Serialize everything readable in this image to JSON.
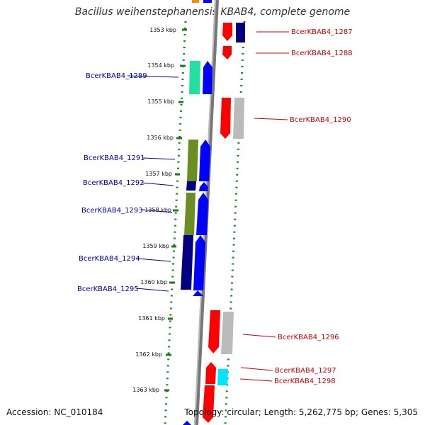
{
  "title": "Bacillus weihenstephanensis KBAB4, complete genome",
  "accession": "Accession: NC_010184",
  "topology": "Topology: circular; Length: 5,262,775 bp; Genes: 5,305",
  "ticks": [
    "1353 kbp",
    "1354 kbp",
    "1355 kbp",
    "1356 kbp",
    "1357 kbp",
    "1358 kbp",
    "1359 kbp",
    "1360 kbp",
    "1361 kbp",
    "1362 kbp",
    "1363 kbp"
  ],
  "genes_left": [
    "BcerKBAB4_1289",
    "BcerKBAB4_1291",
    "BcerKBAB4_1292",
    "BcerKBAB4_1293",
    "BcerKBAB4_1294",
    "BcerKBAB4_1295"
  ],
  "genes_right": [
    "BcerKBAB4_1287",
    "BcerKBAB4_1288",
    "BcerKBAB4_1290",
    "BcerKBAB4_1296",
    "BcerKBAB4_1297",
    "BcerKBAB4_1298"
  ],
  "colors": {
    "forward_label": "#0000aa",
    "reverse_label": "#cc0000",
    "forward_cds": "#0000ff",
    "reverse_cds": "#ff0000",
    "dotted_ring": "#1a7f1a",
    "backbone": "#888888"
  }
}
